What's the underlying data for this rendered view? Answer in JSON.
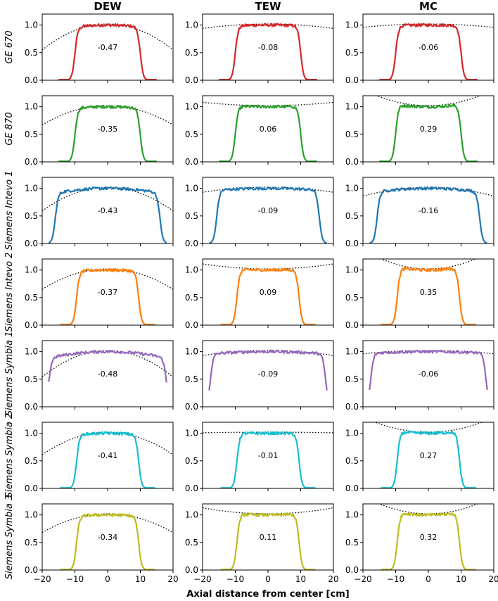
{
  "chart_data": {
    "type": "line",
    "layout": "small-multiples grid, 7 rows x 3 columns",
    "columns": [
      "DEW",
      "TEW",
      "MC"
    ],
    "rows": [
      {
        "label": "GE 670",
        "color": "#d62728"
      },
      {
        "label": "GE 870",
        "color": "#2ca02c"
      },
      {
        "label": "Siemens Intevo 1",
        "color": "#1f77b4"
      },
      {
        "label": "Siemens Intevo 2",
        "color": "#ff7f0e"
      },
      {
        "label": "Siemens Symbia 1",
        "color": "#9467bd"
      },
      {
        "label": "Siemens Symbia 2",
        "color": "#17becf"
      },
      {
        "label": "Siemens Symbia 3",
        "color": "#bcbd22"
      }
    ],
    "annotations": [
      [
        "-0.47",
        "-0.08",
        "-0.06"
      ],
      [
        "-0.35",
        "0.06",
        "0.29"
      ],
      [
        "-0.43",
        "-0.09",
        "-0.16"
      ],
      [
        "-0.37",
        "0.09",
        "0.35"
      ],
      [
        "-0.48",
        "-0.09",
        "-0.06"
      ],
      [
        "-0.41",
        "-0.01",
        "0.27"
      ],
      [
        "-0.34",
        "0.11",
        "0.32"
      ]
    ],
    "curvature": [
      [
        -0.47,
        -0.08,
        -0.06
      ],
      [
        -0.35,
        0.06,
        0.29
      ],
      [
        -0.43,
        -0.09,
        -0.16
      ],
      [
        -0.37,
        0.09,
        0.35
      ],
      [
        -0.48,
        -0.09,
        -0.06
      ],
      [
        -0.41,
        -0.01,
        0.27
      ],
      [
        -0.34,
        0.11,
        0.32
      ]
    ],
    "half_width_cm": [
      10,
      10,
      16,
      9.5,
      18,
      9.5,
      9.5
    ],
    "xlabel": "Axial distance from center [cm]",
    "xlim": [
      -20,
      20
    ],
    "ylim": [
      0.0,
      1.2
    ],
    "xticks": [
      -20,
      -10,
      0,
      10,
      20
    ],
    "yticks": [
      0.0,
      0.5,
      1.0
    ],
    "fit_line_style": "dotted black",
    "grid": false
  }
}
